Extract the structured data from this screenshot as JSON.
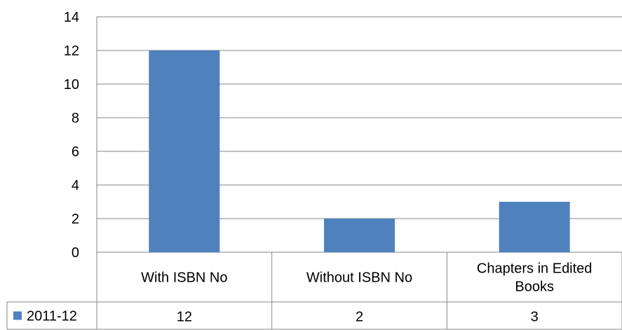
{
  "chart_data": {
    "type": "bar",
    "categories": [
      "With ISBN No",
      "Without ISBN No",
      "Chapters in Edited Books"
    ],
    "category_lines": [
      [
        "With ISBN No"
      ],
      [
        "Without ISBN No"
      ],
      [
        "Chapters in Edited",
        "Books"
      ]
    ],
    "series": [
      {
        "name": "2011-12",
        "values": [
          12,
          2,
          3
        ],
        "value_labels": [
          "12",
          "2",
          "3"
        ],
        "color": "#4f81bd"
      }
    ],
    "ylim": [
      0,
      14
    ],
    "yticks": [
      "0",
      "2",
      "4",
      "6",
      "8",
      "10",
      "12",
      "14"
    ],
    "grid": true,
    "legend": "data-table",
    "title": "",
    "xlabel": "",
    "ylabel": ""
  }
}
